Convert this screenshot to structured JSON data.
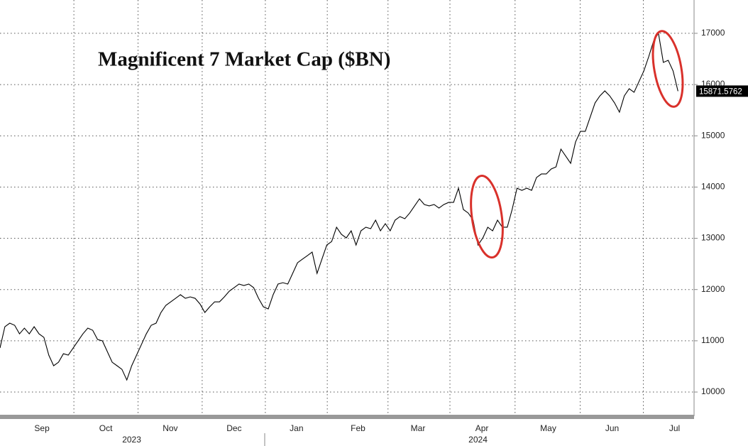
{
  "chart_data": {
    "type": "line",
    "title": "Magnificent 7 Market Cap ($BN)",
    "color": "#000000",
    "values": [
      10860,
      11275,
      11344,
      11303,
      11136,
      11247,
      11136,
      11275,
      11136,
      11067,
      10721,
      10513,
      10582,
      10748,
      10721,
      10859,
      10998,
      11136,
      11247,
      11206,
      11025,
      10998,
      10790,
      10582,
      10513,
      10443,
      10235,
      10513,
      10721,
      10928,
      11136,
      11303,
      11344,
      11552,
      11691,
      11760,
      11829,
      11899,
      11829,
      11857,
      11829,
      11719,
      11552,
      11663,
      11760,
      11760,
      11857,
      11968,
      12037,
      12107,
      12079,
      12107,
      12037,
      11829,
      11663,
      11622,
      11899,
      12107,
      12134,
      12107,
      12315,
      12523,
      12592,
      12661,
      12731,
      12315,
      12592,
      12869,
      12938,
      13216,
      13077,
      13008,
      13146,
      12869,
      13146,
      13216,
      13188,
      13354,
      13146,
      13285,
      13146,
      13354,
      13424,
      13382,
      13493,
      13632,
      13770,
      13659,
      13632,
      13659,
      13590,
      13659,
      13701,
      13701,
      13978,
      13562,
      13493,
      13354,
      12869,
      13008,
      13216,
      13146,
      13354,
      13216,
      13216,
      13562,
      13978,
      13936,
      13978,
      13936,
      14186,
      14255,
      14255,
      14352,
      14394,
      14740,
      14602,
      14463,
      14879,
      15087,
      15087,
      15364,
      15642,
      15780,
      15877,
      15780,
      15642,
      15461,
      15780,
      15919,
      15849,
      16057,
      16265,
      16543,
      16848,
      17000,
      16432,
      16473,
      16265,
      15871.5762
    ],
    "xlim": [
      0,
      142.3
    ],
    "xticks": [
      {
        "value": 8.6,
        "label": "Sep"
      },
      {
        "value": 21.7,
        "label": "Oct"
      },
      {
        "value": 34.9,
        "label": "Nov"
      },
      {
        "value": 48,
        "label": "Dec"
      },
      {
        "value": 60.8,
        "label": "Jan"
      },
      {
        "value": 73.4,
        "label": "Feb"
      },
      {
        "value": 85.7,
        "label": "Mar"
      },
      {
        "value": 98.8,
        "label": "Apr"
      },
      {
        "value": 112.4,
        "label": "May"
      },
      {
        "value": 125.5,
        "label": "Jun"
      },
      {
        "value": 138.3,
        "label": "Jul"
      }
    ],
    "year_labels": [
      {
        "value": 27,
        "label": "2023"
      },
      {
        "value": 98,
        "label": "2024"
      }
    ],
    "ylim": [
      9543,
      17650
    ],
    "yticks": [
      10000,
      11000,
      12000,
      13000,
      14000,
      15000,
      16000,
      17000
    ],
    "grid": true
  }
}
